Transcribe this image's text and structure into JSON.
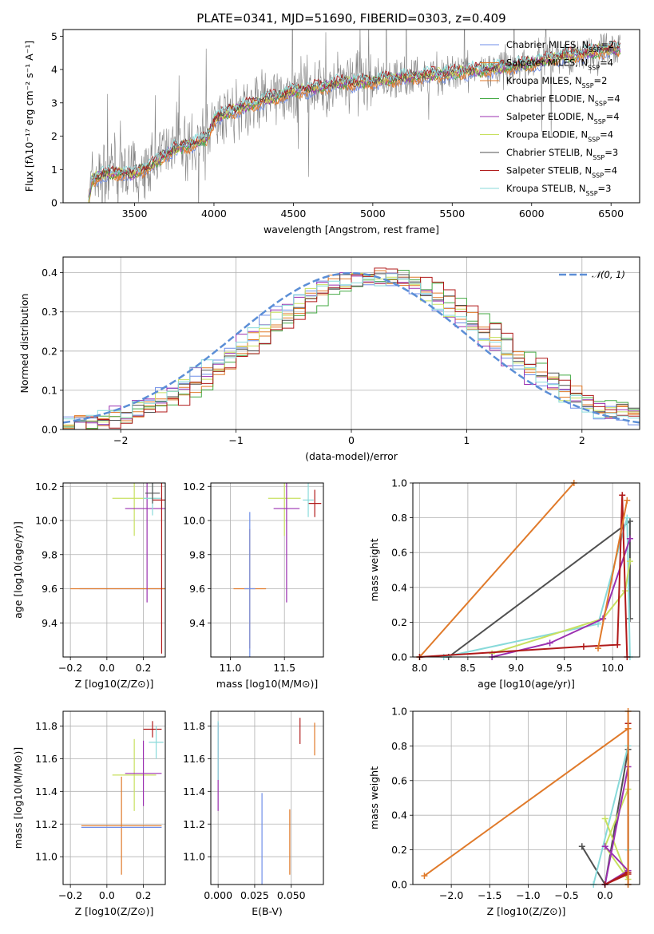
{
  "figure_title": "PLATE=0341, MJD=51690, FIBERID=0303, z=0.409",
  "colors": {
    "Chabrier MILES": "#6f8ee8",
    "Salpeter MILES": "#e07a2a",
    "Kroupa MILES": "#e07a2a",
    "Chabrier ELODIE": "#44aa44",
    "Salpeter ELODIE": "#9b30b0",
    "Kroupa ELODIE": "#c8e060",
    "Chabrier STELIB": "#505050",
    "Salpeter STELIB": "#b01a1a",
    "Kroupa STELIB": "#88dada",
    "data": "#808080",
    "normal": "#5b8ed6",
    "pink": "#e080b0"
  },
  "chart_data": [
    {
      "id": "spectrum",
      "type": "line",
      "title": "PLATE=0341, MJD=51690, FIBERID=0303, z=0.409",
      "xlabel": "wavelength [Angstrom, rest frame]",
      "ylabel": "Flux [fλ10⁻¹⁷ erg cm⁻² s⁻¹ A⁻¹]",
      "xlim": [
        3050,
        6680
      ],
      "ylim": [
        0,
        5.2
      ],
      "xticks": [
        "3500",
        "4000",
        "4500",
        "5000",
        "5500",
        "6000",
        "6500"
      ],
      "yticks": [
        "0",
        "1",
        "2",
        "3",
        "4",
        "5"
      ],
      "grid": false,
      "legend_placement": "right",
      "legend": [
        "Chabrier MILES, N_SSP=2",
        "Salpeter MILES, N_SSP=4",
        "Kroupa MILES, N_SSP=2",
        "Chabrier ELODIE, N_SSP=4",
        "Salpeter ELODIE, N_SSP=4",
        "Kroupa ELODIE, N_SSP=4",
        "Chabrier STELIB, N_SSP=3",
        "Salpeter STELIB, N_SSP=4",
        "Kroupa STELIB, N_SSP=3"
      ],
      "continuum": {
        "x": [
          3210,
          3230,
          3300,
          3400,
          3480,
          3520,
          3600,
          3680,
          3750,
          3850,
          3950,
          4000,
          4100,
          4200,
          4300,
          4400,
          4500,
          4600,
          4700,
          4800,
          4900,
          5000,
          5100,
          5200,
          5300,
          5400,
          5500,
          5600,
          5700,
          5800,
          5900,
          6000,
          6100,
          6200,
          6300,
          6400,
          6500,
          6560
        ],
        "y": [
          0.0,
          0.7,
          0.85,
          0.9,
          0.85,
          0.95,
          1.1,
          1.4,
          1.6,
          1.75,
          1.9,
          2.5,
          2.75,
          2.9,
          3.05,
          3.2,
          3.35,
          3.4,
          3.5,
          3.6,
          3.6,
          3.65,
          3.7,
          3.75,
          3.8,
          3.85,
          3.9,
          3.95,
          4.0,
          4.05,
          4.1,
          4.2,
          4.3,
          4.4,
          4.45,
          4.55,
          4.6,
          4.6
        ]
      }
    },
    {
      "id": "residuals",
      "type": "line",
      "xlabel": "(data-model)/error",
      "ylabel": "Normed distribution",
      "xlim": [
        -2.5,
        2.5
      ],
      "ylim": [
        0,
        0.44
      ],
      "xticks": [
        "−2",
        "−1",
        "0",
        "1",
        "2"
      ],
      "yticks": [
        "0.0",
        "0.1",
        "0.2",
        "0.3",
        "0.4"
      ],
      "grid": true,
      "legend_placement": "top-right",
      "legend": [
        "𝒩(0, 1)"
      ],
      "normal_mean": 0,
      "normal_sigma": 1
    },
    {
      "id": "age-vs-Z",
      "type": "scatter",
      "xlabel": "Z [log10(Z/Z⊙)]",
      "ylabel": "age  [log10(age/yr)]",
      "xlim": [
        -0.24,
        0.32
      ],
      "ylim": [
        9.2,
        10.22
      ],
      "xticks": [
        "−0.2",
        "0.0",
        "0.2"
      ],
      "yticks": [
        "9.4",
        "9.6",
        "9.8",
        "10.0",
        "10.2"
      ],
      "grid": true,
      "points": [
        {
          "model": "Chabrier MILES",
          "x": 0.1,
          "y": 9.6,
          "xerr": 0.25,
          "yerr": 0
        },
        {
          "model": "Salpeter MILES",
          "x": 0.1,
          "y": 9.6,
          "xerr": 0.3,
          "yerr": 0
        },
        {
          "model": "Kroupa ELODIE",
          "x": 0.15,
          "y": 10.13,
          "xerr": 0.12,
          "yerr": 0.22
        },
        {
          "model": "Salpeter ELODIE",
          "x": 0.22,
          "y": 10.07,
          "xerr": 0.12,
          "yerr": 0.55
        },
        {
          "model": "Kroupa STELIB",
          "x": 0.25,
          "y": 10.13,
          "xerr": 0.05,
          "yerr": 0.1
        },
        {
          "model": "Salpeter STELIB",
          "x": 0.3,
          "y": 10.12,
          "xerr": 0.05,
          "yerr": 0.9
        },
        {
          "model": "Chabrier STELIB",
          "x": 0.25,
          "y": 10.16,
          "xerr": 0.04,
          "yerr": 0.06
        }
      ]
    },
    {
      "id": "age-vs-mass",
      "type": "scatter",
      "xlabel": "mass [log10(M/M⊙)]",
      "ylabel": "",
      "xlim": [
        10.82,
        11.86
      ],
      "ylim": [
        9.2,
        10.22
      ],
      "xticks": [
        "11.0",
        "11.5"
      ],
      "yticks": [
        "9.4",
        "9.6",
        "9.8",
        "10.0",
        "10.2"
      ],
      "grid": true,
      "points": [
        {
          "model": "Salpeter MILES",
          "x": 11.18,
          "y": 9.6,
          "xerr": 0.15,
          "yerr": 0.35
        },
        {
          "model": "Chabrier MILES",
          "x": 11.18,
          "y": 9.6,
          "xerr": 0.05,
          "yerr": 0.45
        },
        {
          "model": "Kroupa ELODIE",
          "x": 11.5,
          "y": 10.13,
          "xerr": 0.15,
          "yerr": 0.22
        },
        {
          "model": "Salpeter ELODIE",
          "x": 11.52,
          "y": 10.07,
          "xerr": 0.12,
          "yerr": 0.55
        },
        {
          "model": "Salpeter STELIB",
          "x": 11.78,
          "y": 10.1,
          "xerr": 0.06,
          "yerr": 0.08
        },
        {
          "model": "Kroupa STELIB",
          "x": 11.72,
          "y": 10.12,
          "xerr": 0.05,
          "yerr": 0.1
        }
      ]
    },
    {
      "id": "weight-vs-age",
      "type": "line",
      "xlabel": "age  [log10(age/yr)]",
      "ylabel": "mass weight",
      "xlim": [
        7.93,
        10.28
      ],
      "ylim": [
        0,
        1.0
      ],
      "xticks": [
        "8.0",
        "8.5",
        "9.0",
        "9.5",
        "10.0"
      ],
      "yticks": [
        "0.0",
        "0.2",
        "0.4",
        "0.6",
        "0.8",
        "1.0"
      ],
      "grid": true,
      "series": [
        {
          "model": "Salpeter MILES",
          "x": [
            8.0,
            9.6
          ],
          "y": [
            0.0,
            1.0
          ]
        },
        {
          "model": "Chabrier STELIB",
          "x": [
            8.3,
            10.18,
            10.18
          ],
          "y": [
            0.0,
            0.78,
            0.22
          ]
        },
        {
          "model": "Kroupa STELIB",
          "x": [
            8.25,
            9.85,
            10.15,
            10.18
          ],
          "y": [
            0.0,
            0.19,
            0.8,
            0.0
          ]
        },
        {
          "model": "Kroupa ELODIE",
          "x": [
            8.75,
            9.9,
            10.13,
            10.18
          ],
          "y": [
            0.02,
            0.22,
            0.38,
            0.55
          ]
        },
        {
          "model": "Salpeter ELODIE",
          "x": [
            8.75,
            9.35,
            9.9,
            10.18
          ],
          "y": [
            0.0,
            0.08,
            0.22,
            0.68
          ]
        },
        {
          "model": "Salpeter STELIB",
          "x": [
            8.0,
            9.7,
            10.05,
            10.1,
            10.15
          ],
          "y": [
            0.0,
            0.06,
            0.07,
            0.93,
            0.0
          ]
        },
        {
          "model": "Kroupa MILES",
          "x": [
            9.85,
            10.15
          ],
          "y": [
            0.05,
            0.9
          ]
        }
      ]
    },
    {
      "id": "mass-vs-Z",
      "type": "scatter",
      "xlabel": "Z [log10(Z/Z⊙)]",
      "ylabel": "mass [log10(M/M⊙)]",
      "xlim": [
        -0.24,
        0.32
      ],
      "ylim": [
        10.83,
        11.89
      ],
      "xticks": [
        "−0.2",
        "0.0",
        "0.2"
      ],
      "yticks": [
        "11.0",
        "11.2",
        "11.4",
        "11.6",
        "11.8"
      ],
      "grid": true,
      "points": [
        {
          "model": "Salpeter MILES",
          "x": 0.08,
          "y": 11.19,
          "xerr": 0.22,
          "yerr": 0.3
        },
        {
          "model": "Chabrier MILES",
          "x": 0.08,
          "y": 11.18,
          "xerr": 0.22,
          "yerr": 0.0
        },
        {
          "model": "Kroupa ELODIE",
          "x": 0.15,
          "y": 11.5,
          "xerr": 0.12,
          "yerr": 0.22
        },
        {
          "model": "Salpeter ELODIE",
          "x": 0.2,
          "y": 11.51,
          "xerr": 0.1,
          "yerr": 0.2
        },
        {
          "model": "Salpeter STELIB",
          "x": 0.25,
          "y": 11.78,
          "xerr": 0.05,
          "yerr": 0.05
        },
        {
          "model": "Kroupa STELIB",
          "x": 0.27,
          "y": 11.7,
          "xerr": 0.04,
          "yerr": 0.1
        }
      ]
    },
    {
      "id": "mass-vs-EBV",
      "type": "scatter",
      "xlabel": "E(B-V)",
      "ylabel": "",
      "xlim": [
        -0.005,
        0.072
      ],
      "ylim": [
        10.83,
        11.89
      ],
      "xticks": [
        "0.000",
        "0.025",
        "0.050"
      ],
      "yticks": [
        "11.0",
        "11.2",
        "11.4",
        "11.6",
        "11.8"
      ],
      "grid": true,
      "points": [
        {
          "model": "Chabrier MILES",
          "x": 0.03,
          "y": 11.09,
          "xerr": 0,
          "yerr": 0.3
        },
        {
          "model": "Salpeter MILES",
          "x": 0.049,
          "y": 11.09,
          "xerr": 0,
          "yerr": 0.2
        },
        {
          "model": "Salpeter ELODIE",
          "x": 0.0,
          "y": 11.55,
          "xerr": 0,
          "yerr": 0.27
        },
        {
          "model": "Kroupa STELIB",
          "x": 0.0,
          "y": 11.65,
          "xerr": 0,
          "yerr": 0.18
        },
        {
          "model": "Salpeter STELIB",
          "x": 0.056,
          "y": 11.77,
          "xerr": 0,
          "yerr": 0.08
        },
        {
          "model": "Kroupa MILES",
          "x": 0.066,
          "y": 11.72,
          "xerr": 0,
          "yerr": 0.1
        }
      ]
    },
    {
      "id": "weight-vs-Z",
      "type": "line",
      "xlabel": "Z [log10(Z/Z⊙)]",
      "ylabel": "mass weight",
      "xlim": [
        -2.5,
        0.45
      ],
      "ylim": [
        0,
        1.0
      ],
      "xticks": [
        "−2.0",
        "−1.5",
        "−1.0",
        "−0.5",
        "0.0"
      ],
      "yticks": [
        "0.0",
        "0.2",
        "0.4",
        "0.6",
        "0.8",
        "1.0"
      ],
      "grid": true,
      "series": [
        {
          "model": "Kroupa MILES",
          "x": [
            -2.35,
            0.3
          ],
          "y": [
            0.05,
            0.9
          ]
        },
        {
          "model": "Chabrier STELIB",
          "x": [
            -0.3,
            0.0,
            0.3,
            0.3
          ],
          "y": [
            0.22,
            0.0,
            0.78,
            0.0
          ]
        },
        {
          "model": "Kroupa STELIB",
          "x": [
            -0.15,
            0.3,
            0.3
          ],
          "y": [
            0.0,
            0.8,
            0.2
          ]
        },
        {
          "model": "Kroupa ELODIE",
          "x": [
            0.0,
            0.3,
            0.0,
            0.3
          ],
          "y": [
            0.38,
            0.03,
            0.22,
            0.55
          ]
        },
        {
          "model": "Salpeter ELODIE",
          "x": [
            0.0,
            0.3,
            0.0,
            0.3
          ],
          "y": [
            0.22,
            0.08,
            0.0,
            0.68
          ]
        },
        {
          "model": "Salpeter STELIB",
          "x": [
            0.3,
            0.3,
            0.0,
            0.3
          ],
          "y": [
            0.93,
            0.07,
            0.0,
            0.06
          ]
        },
        {
          "model": "Salpeter MILES",
          "x": [
            0.3,
            0.3
          ],
          "y": [
            0.0,
            1.0
          ]
        }
      ]
    }
  ]
}
